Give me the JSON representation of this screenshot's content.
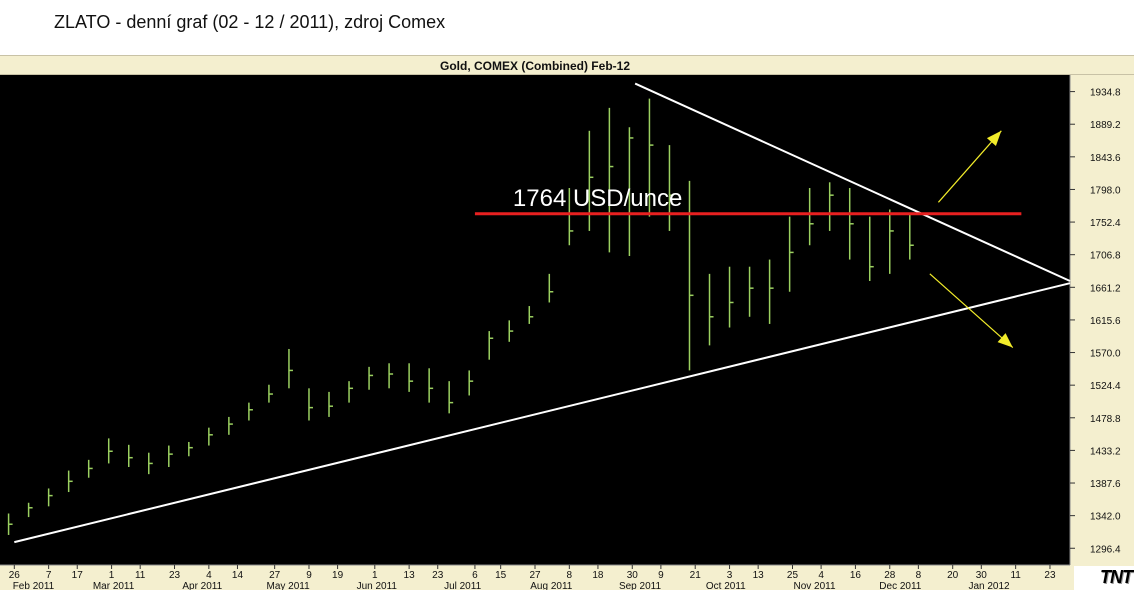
{
  "page": {
    "title": "ZLATO - denní graf (02 - 12 / 2011), zdroj Comex"
  },
  "chart_data": {
    "type": "ohlc",
    "title": "Gold, COMEX (Combined) Feb-12",
    "ylim": [
      1273,
      1958
    ],
    "yticks": [
      1296.4,
      1342.0,
      1387.6,
      1433.2,
      1478.8,
      1524.4,
      1570.0,
      1615.6,
      1661.2,
      1706.8,
      1752.4,
      1798.0,
      1843.6,
      1889.2,
      1934.8
    ],
    "ytick_labels": [
      "1296.4",
      "1342.0",
      "1387.6",
      "1433.2",
      "1478.8",
      "1524.4",
      "1570.0",
      "1615.6",
      "1661.2",
      "1706.8",
      "1752.4",
      "1798.0",
      "1843.6",
      "1889.2",
      "1934.8"
    ],
    "day_ticks": [
      {
        "date": "2011-01-26",
        "label": "26"
      },
      {
        "date": "2011-02-07",
        "label": "7"
      },
      {
        "date": "2011-02-17",
        "label": "17"
      },
      {
        "date": "2011-03-01",
        "label": "1"
      },
      {
        "date": "2011-03-11",
        "label": "11"
      },
      {
        "date": "2011-03-23",
        "label": "23"
      },
      {
        "date": "2011-04-04",
        "label": "4"
      },
      {
        "date": "2011-04-14",
        "label": "14"
      },
      {
        "date": "2011-04-27",
        "label": "27"
      },
      {
        "date": "2011-05-09",
        "label": "9"
      },
      {
        "date": "2011-05-19",
        "label": "19"
      },
      {
        "date": "2011-06-01",
        "label": "1"
      },
      {
        "date": "2011-06-13",
        "label": "13"
      },
      {
        "date": "2011-06-23",
        "label": "23"
      },
      {
        "date": "2011-07-06",
        "label": "6"
      },
      {
        "date": "2011-07-15",
        "label": "15"
      },
      {
        "date": "2011-07-27",
        "label": "27"
      },
      {
        "date": "2011-08-08",
        "label": "8"
      },
      {
        "date": "2011-08-18",
        "label": "18"
      },
      {
        "date": "2011-08-30",
        "label": "30"
      },
      {
        "date": "2011-09-09",
        "label": "9"
      },
      {
        "date": "2011-09-21",
        "label": "21"
      },
      {
        "date": "2011-10-03",
        "label": "3"
      },
      {
        "date": "2011-10-13",
        "label": "13"
      },
      {
        "date": "2011-10-25",
        "label": "25"
      },
      {
        "date": "2011-11-04",
        "label": "4"
      },
      {
        "date": "2011-11-16",
        "label": "16"
      },
      {
        "date": "2011-11-28",
        "label": "28"
      },
      {
        "date": "2011-12-08",
        "label": "8"
      },
      {
        "date": "2011-12-20",
        "label": "20"
      },
      {
        "date": "2011-12-30",
        "label": "30"
      },
      {
        "date": "2012-01-11",
        "label": "11"
      },
      {
        "date": "2012-01-23",
        "label": "23"
      }
    ],
    "month_ticks": [
      {
        "date": "2011-02-01",
        "label": "Feb 2011"
      },
      {
        "date": "2011-03-01",
        "label": "Mar 2011"
      },
      {
        "date": "2011-04-01",
        "label": "Apr 2011"
      },
      {
        "date": "2011-05-01",
        "label": "May 2011"
      },
      {
        "date": "2011-06-01",
        "label": "Jun 2011"
      },
      {
        "date": "2011-07-01",
        "label": "Jul 2011"
      },
      {
        "date": "2011-08-01",
        "label": "Aug 2011"
      },
      {
        "date": "2011-09-01",
        "label": "Sep 2011"
      },
      {
        "date": "2011-10-01",
        "label": "Oct 2011"
      },
      {
        "date": "2011-11-01",
        "label": "Nov 2011"
      },
      {
        "date": "2011-12-01",
        "label": "Dec 2011"
      },
      {
        "date": "2012-01-01",
        "label": "Jan 2012"
      }
    ],
    "x_range": [
      "2011-01-21",
      "2012-01-30"
    ],
    "series": [
      {
        "type": "ohlc",
        "color": "#9bd060",
        "x": [
          "2011-01-24",
          "2011-01-31",
          "2011-02-07",
          "2011-02-14",
          "2011-02-21",
          "2011-02-28",
          "2011-03-07",
          "2011-03-14",
          "2011-03-21",
          "2011-03-28",
          "2011-04-04",
          "2011-04-11",
          "2011-04-18",
          "2011-04-25",
          "2011-05-02",
          "2011-05-09",
          "2011-05-16",
          "2011-05-23",
          "2011-05-30",
          "2011-06-06",
          "2011-06-13",
          "2011-06-20",
          "2011-06-27",
          "2011-07-04",
          "2011-07-11",
          "2011-07-18",
          "2011-07-25",
          "2011-08-01",
          "2011-08-08",
          "2011-08-15",
          "2011-08-22",
          "2011-08-29",
          "2011-09-05",
          "2011-09-12",
          "2011-09-19",
          "2011-09-26",
          "2011-10-03",
          "2011-10-10",
          "2011-10-17",
          "2011-10-24",
          "2011-10-31",
          "2011-11-07",
          "2011-11-14",
          "2011-11-21",
          "2011-11-28",
          "2011-12-05"
        ],
        "close": [
          1330,
          1353,
          1370,
          1390,
          1408,
          1432,
          1423,
          1415,
          1428,
          1437,
          1455,
          1470,
          1490,
          1512,
          1545,
          1493,
          1495,
          1520,
          1538,
          1540,
          1530,
          1520,
          1500,
          1530,
          1590,
          1600,
          1620,
          1655,
          1740,
          1815,
          1830,
          1870,
          1860,
          1790,
          1650,
          1620,
          1640,
          1660,
          1660,
          1710,
          1750,
          1790,
          1750,
          1690,
          1740,
          1720
        ],
        "high": [
          1345,
          1360,
          1380,
          1405,
          1420,
          1450,
          1441,
          1430,
          1440,
          1445,
          1465,
          1480,
          1500,
          1525,
          1575,
          1520,
          1515,
          1530,
          1550,
          1555,
          1555,
          1548,
          1530,
          1545,
          1600,
          1615,
          1635,
          1680,
          1800,
          1880,
          1912,
          1885,
          1925,
          1860,
          1810,
          1680,
          1690,
          1690,
          1700,
          1760,
          1800,
          1808,
          1800,
          1760,
          1770,
          1765
        ],
        "low": [
          1315,
          1340,
          1355,
          1375,
          1395,
          1415,
          1410,
          1400,
          1410,
          1425,
          1440,
          1455,
          1475,
          1500,
          1520,
          1475,
          1480,
          1500,
          1518,
          1520,
          1515,
          1500,
          1485,
          1510,
          1560,
          1585,
          1610,
          1640,
          1720,
          1740,
          1710,
          1705,
          1760,
          1740,
          1545,
          1580,
          1605,
          1620,
          1610,
          1655,
          1720,
          1740,
          1700,
          1670,
          1680,
          1700
        ]
      }
    ],
    "trendlines": [
      {
        "name": "lower-trendline",
        "from": {
          "date": "2011-01-26",
          "value": 1305
        },
        "to": {
          "date": "2012-01-30",
          "value": 1667
        }
      },
      {
        "name": "upper-trendline",
        "from": {
          "date": "2011-08-31",
          "value": 1946
        },
        "to": {
          "date": "2012-01-30",
          "value": 1670
        }
      }
    ],
    "resistance": {
      "value": 1764,
      "label": "1764 USD/unce",
      "from_date": "2011-07-06",
      "to_date": "2012-01-13",
      "color": "#e82020"
    },
    "arrows": [
      {
        "name": "breakout-up-arrow",
        "from": {
          "date": "2011-12-15",
          "value": 1780
        },
        "to": {
          "date": "2012-01-06",
          "value": 1880
        },
        "color": "#f2ec2a"
      },
      {
        "name": "breakout-down-arrow",
        "from": {
          "date": "2011-12-12",
          "value": 1680
        },
        "to": {
          "date": "2012-01-10",
          "value": 1577
        },
        "color": "#f2ec2a"
      }
    ]
  },
  "branding": {
    "logo_text": "TNT"
  }
}
